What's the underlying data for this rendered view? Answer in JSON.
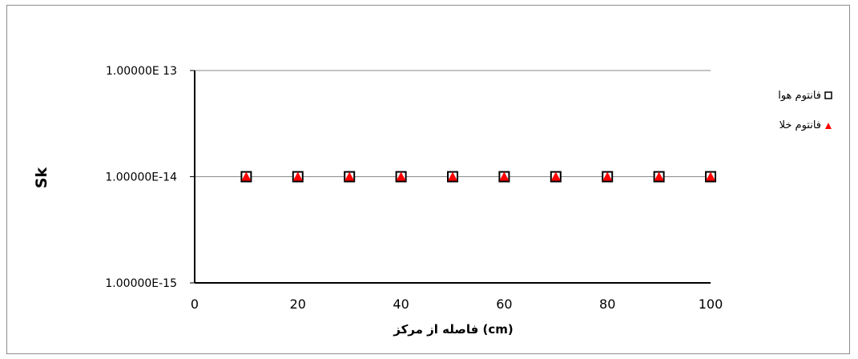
{
  "chart_data": {
    "type": "scatter",
    "title": "",
    "xlabel": "فاصله از مرکز (cm)",
    "ylabel": "Sk",
    "x_ticks": [
      "0",
      "20",
      "40",
      "60",
      "80",
      "100"
    ],
    "y_ticks": [
      "1.00000E 13",
      "1.00000E-14",
      "1.00000E-15"
    ],
    "xlim": [
      0,
      100
    ],
    "ylim": [
      1e-15,
      1e-13
    ],
    "y_scale": "log",
    "grid": "horizontal major gridlines",
    "legend_position": "right",
    "series": [
      {
        "name": "فانتوم هوا",
        "marker": "square-open",
        "color": "#000000",
        "x": [
          10,
          20,
          30,
          40,
          50,
          60,
          70,
          80,
          90,
          100
        ],
        "y": [
          1e-14,
          1e-14,
          1e-14,
          1e-14,
          1e-14,
          1e-14,
          1e-14,
          1e-14,
          1e-14,
          1e-14
        ]
      },
      {
        "name": "فانتوم خلا",
        "marker": "triangle-filled",
        "color": "#ff0000",
        "x": [
          10,
          20,
          30,
          40,
          50,
          60,
          70,
          80,
          90,
          100
        ],
        "y": [
          1e-14,
          1e-14,
          1e-14,
          1e-14,
          1e-14,
          1e-14,
          1e-14,
          1e-14,
          1e-14,
          1e-14
        ]
      }
    ]
  }
}
